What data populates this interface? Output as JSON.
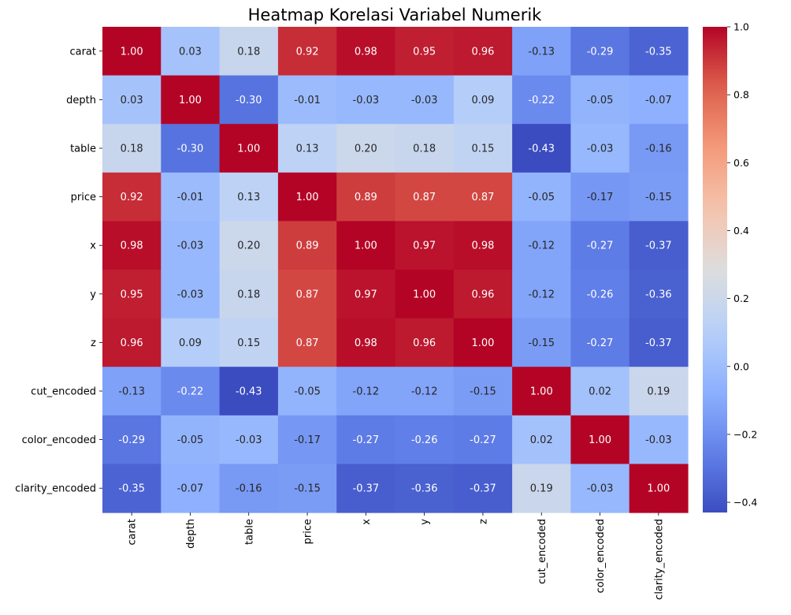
{
  "chart_data": {
    "type": "heatmap",
    "title": "Heatmap Korelasi Variabel Numerik",
    "colormap": "coolwarm",
    "value_range": [
      -0.43,
      1.0
    ],
    "annotated": true,
    "value_format": "2 decimals",
    "rows": [
      "carat",
      "depth",
      "table",
      "price",
      "x",
      "y",
      "z",
      "cut_encoded",
      "color_encoded",
      "clarity_encoded"
    ],
    "columns": [
      "carat",
      "depth",
      "table",
      "price",
      "x",
      "y",
      "z",
      "cut_encoded",
      "color_encoded",
      "clarity_encoded"
    ],
    "values": [
      [
        1.0,
        0.03,
        0.18,
        0.92,
        0.98,
        0.95,
        0.96,
        -0.13,
        -0.29,
        -0.35
      ],
      [
        0.03,
        1.0,
        -0.3,
        -0.01,
        -0.03,
        -0.03,
        0.09,
        -0.22,
        -0.05,
        -0.07
      ],
      [
        0.18,
        -0.3,
        1.0,
        0.13,
        0.2,
        0.18,
        0.15,
        -0.43,
        -0.03,
        -0.16
      ],
      [
        0.92,
        -0.01,
        0.13,
        1.0,
        0.89,
        0.87,
        0.87,
        -0.05,
        -0.17,
        -0.15
      ],
      [
        0.98,
        -0.03,
        0.2,
        0.89,
        1.0,
        0.97,
        0.98,
        -0.12,
        -0.27,
        -0.37
      ],
      [
        0.95,
        -0.03,
        0.18,
        0.87,
        0.97,
        1.0,
        0.96,
        -0.12,
        -0.26,
        -0.36
      ],
      [
        0.96,
        0.09,
        0.15,
        0.87,
        0.98,
        0.96,
        1.0,
        -0.15,
        -0.27,
        -0.37
      ],
      [
        -0.13,
        -0.22,
        -0.43,
        -0.05,
        -0.12,
        -0.12,
        -0.15,
        1.0,
        0.02,
        0.19
      ],
      [
        -0.29,
        -0.05,
        -0.03,
        -0.17,
        -0.27,
        -0.26,
        -0.27,
        0.02,
        1.0,
        -0.03
      ],
      [
        -0.35,
        -0.07,
        -0.16,
        -0.15,
        -0.37,
        -0.36,
        -0.37,
        0.19,
        -0.03,
        1.0
      ]
    ],
    "colorbar": {
      "ticks": [
        1.0,
        0.8,
        0.6,
        0.4,
        0.2,
        0.0,
        -0.2,
        -0.4
      ],
      "tick_labels": [
        "1.0",
        "0.8",
        "0.6",
        "0.4",
        "0.2",
        "0.0",
        "−0.2",
        "−0.4"
      ],
      "placement": "right"
    },
    "grid": false
  }
}
